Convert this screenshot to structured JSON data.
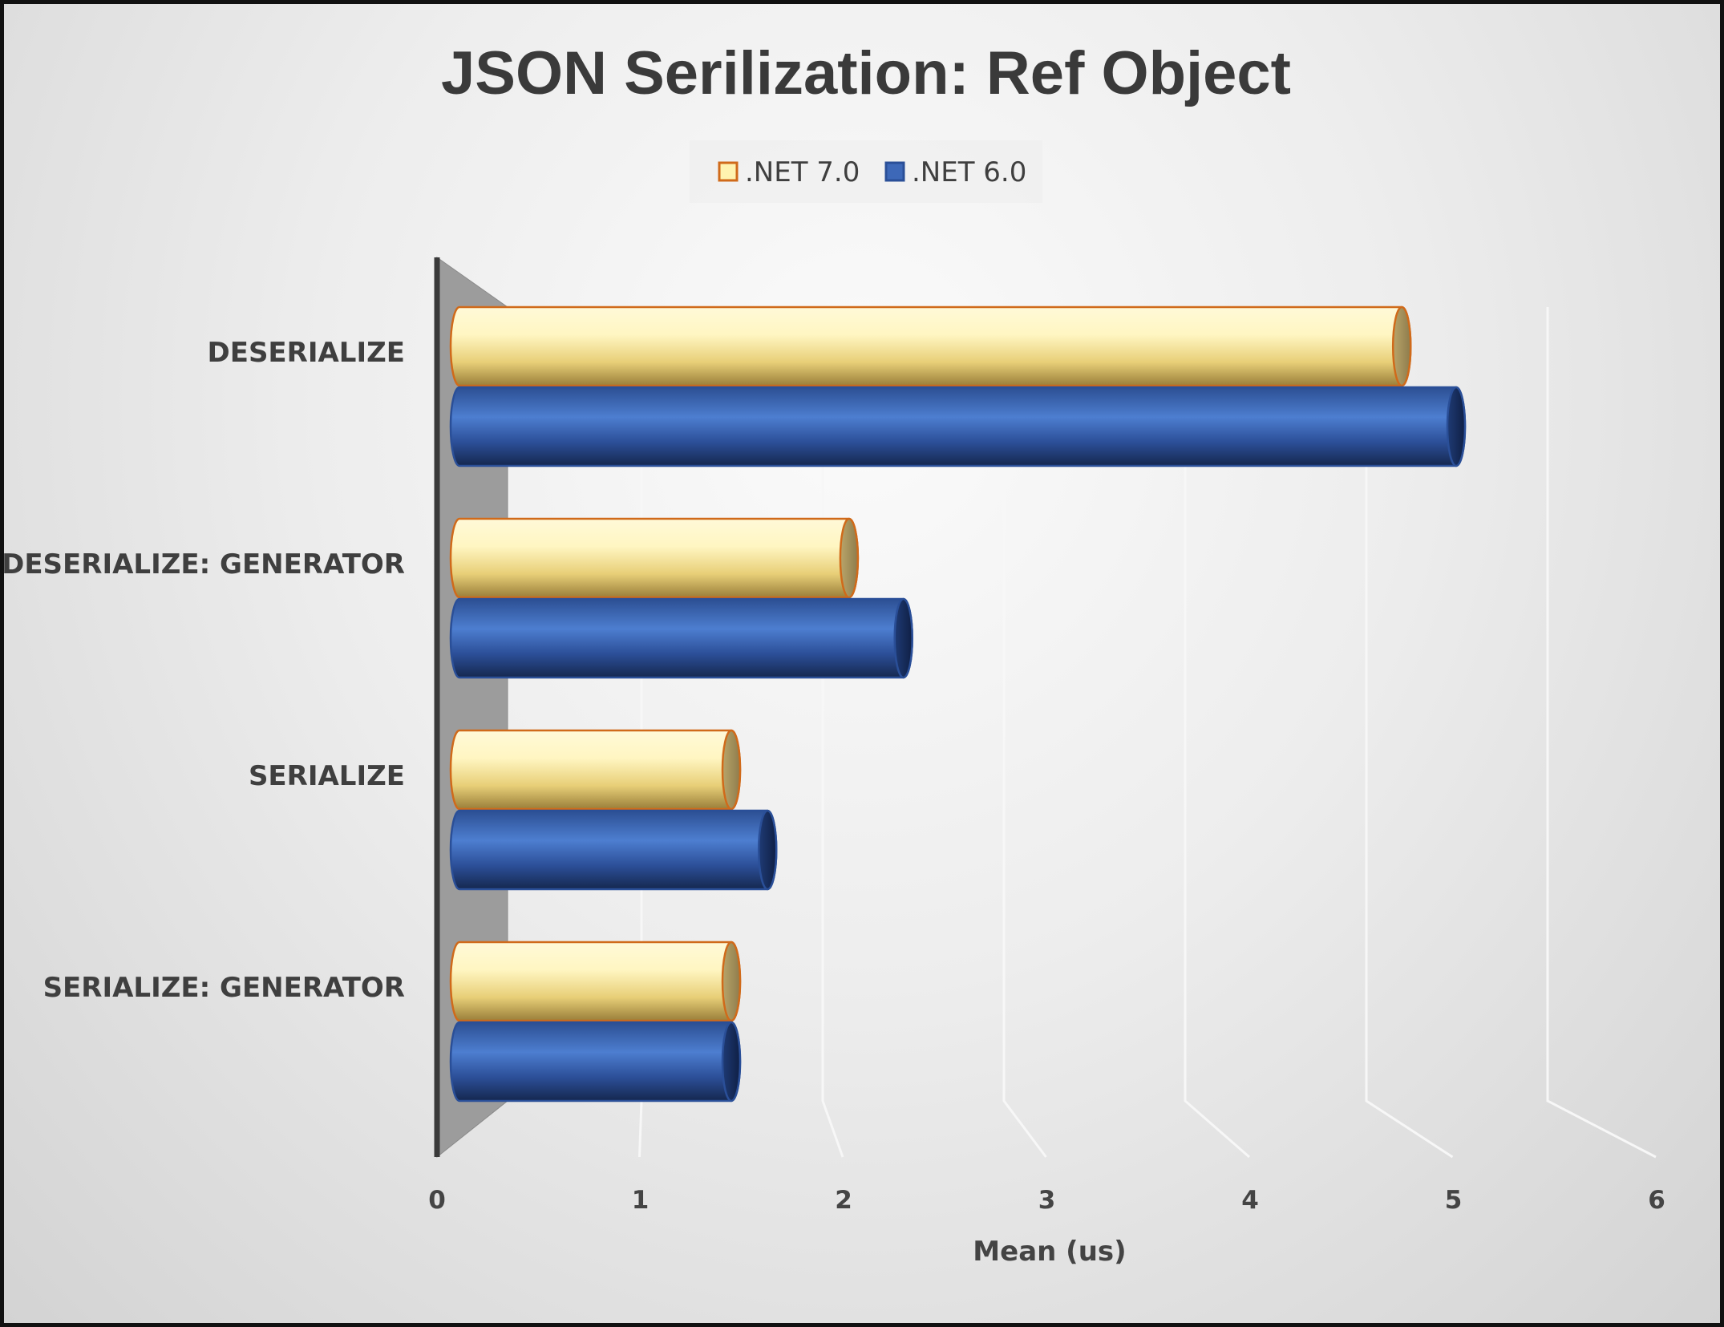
{
  "chart_data": {
    "type": "bar",
    "orientation": "horizontal",
    "style": "3d-cylinder",
    "title": "JSON Serilization: Ref Object",
    "xlabel": "Mean (us)",
    "ylabel": "",
    "categories": [
      "DESERIALIZE",
      "DESERIALIZE: GENERATOR",
      "SERIALIZE",
      "SERIALIZE: GENERATOR"
    ],
    "series": [
      {
        "name": ".NET 7.0",
        "values": [
          5.2,
          2.15,
          1.5,
          1.5
        ],
        "color": "#f5e28a",
        "stroke": "#d06a1a"
      },
      {
        "name": ".NET 6.0",
        "values": [
          5.5,
          2.45,
          1.7,
          1.5
        ],
        "color": "#3d68b8",
        "stroke": "#2a4f98"
      }
    ],
    "xlim": [
      0,
      6
    ],
    "xticks": [
      "0",
      "1",
      "2",
      "3",
      "4",
      "5",
      "6"
    ],
    "grid": true,
    "legend_position": "top"
  }
}
